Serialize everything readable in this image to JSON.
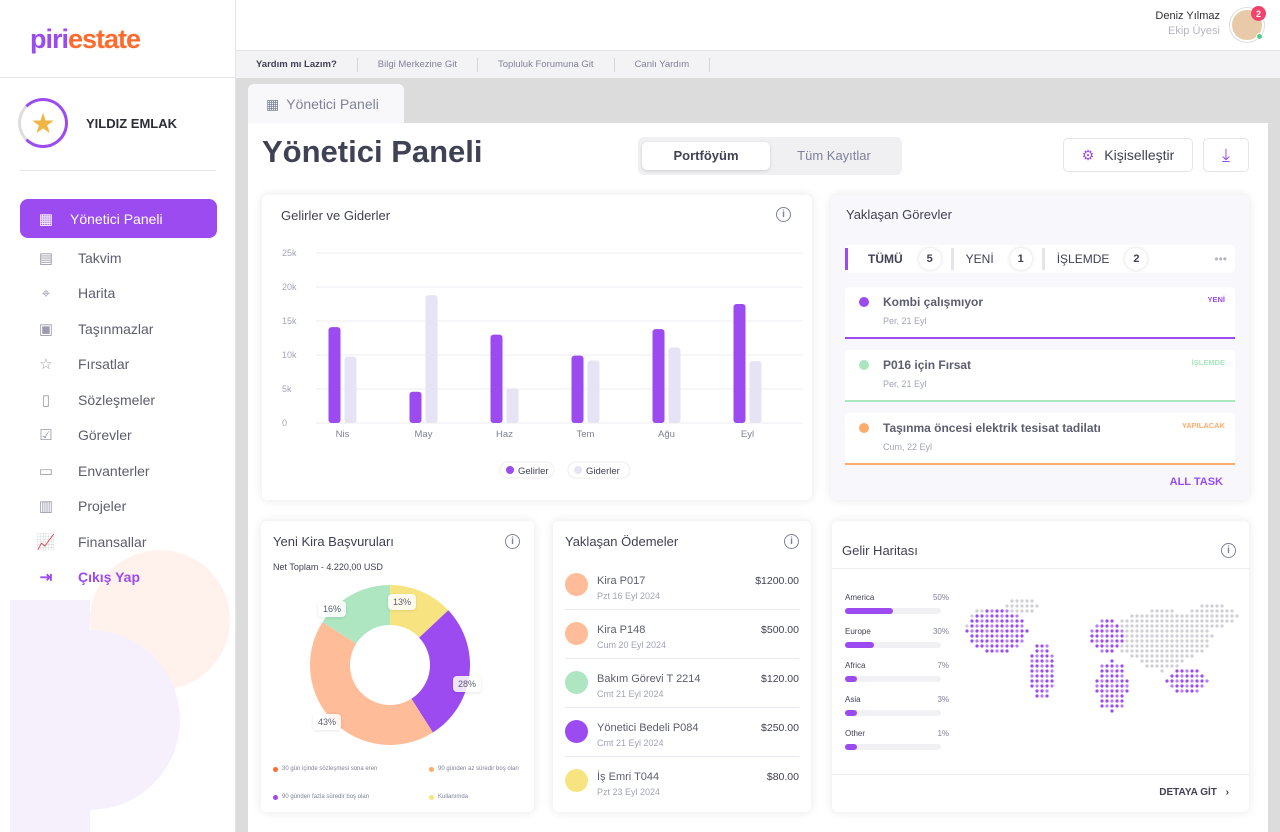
{
  "brand": {
    "logo_part1": "piri",
    "logo_part2": "estate"
  },
  "company": {
    "name": "YILDIZ EMLAK"
  },
  "sidebar": {
    "items": [
      {
        "label": "Yönetici Paneli",
        "icon": "grid-icon",
        "active": true
      },
      {
        "label": "Takvim",
        "icon": "calendar-icon"
      },
      {
        "label": "Harita",
        "icon": "map-icon"
      },
      {
        "label": "Taşınmazlar",
        "icon": "building-icon"
      },
      {
        "label": "Fırsatlar",
        "icon": "star-icon"
      },
      {
        "label": "Sözleşmeler",
        "icon": "contract-icon"
      },
      {
        "label": "Görevler",
        "icon": "clipboard-icon"
      },
      {
        "label": "Envanterler",
        "icon": "inventory-icon"
      },
      {
        "label": "Projeler",
        "icon": "monitor-icon"
      },
      {
        "label": "Finansallar",
        "icon": "chart-icon"
      },
      {
        "label": "Çıkış Yap",
        "icon": "logout-icon"
      }
    ]
  },
  "header": {
    "user_name": "Deniz Yılmaz",
    "user_role": "Ekip Üyesi",
    "notification_count": "2"
  },
  "helpbar": {
    "items": [
      "Yardım mı Lazım?",
      "Bilgi Merkezine Git",
      "Topluluk Forumuna Git",
      "Canlı Yardım"
    ]
  },
  "tab": {
    "label": "Yönetici Paneli"
  },
  "page": {
    "title": "Yönetici Paneli",
    "segments": [
      "Portföyüm",
      "Tüm Kayıtlar"
    ],
    "customize_label": "Kişiselleştir"
  },
  "income": {
    "title": "Gelirler ve Giderler"
  },
  "chart_data": {
    "type": "bar",
    "categories": [
      "Nis",
      "May",
      "Haz",
      "Tem",
      "Ağu",
      "Eyl"
    ],
    "series": [
      {
        "name": "Gelirler",
        "color": "#9b4bf0",
        "values": [
          14100,
          4600,
          13000,
          9900,
          13800,
          17500
        ]
      },
      {
        "name": "Giderler",
        "color": "#e6e3f5",
        "values": [
          9750,
          18800,
          5100,
          9200,
          11100,
          9100
        ]
      }
    ],
    "yticks": [
      "0",
      "5k",
      "10k",
      "15k",
      "20k",
      "25k"
    ],
    "ylim": [
      0,
      25000
    ],
    "grid": true,
    "legend": "bottom"
  },
  "tasks": {
    "title": "Yaklaşan Görevler",
    "filters": [
      {
        "label": "TÜMÜ",
        "count": "5"
      },
      {
        "label": "YENİ",
        "count": "1"
      },
      {
        "label": "İŞLEMDE",
        "count": "2"
      }
    ],
    "items": [
      {
        "title": "Kombi çalışmıyor",
        "date": "Per, 21 Eyl",
        "status": "YENİ",
        "color": "#9b4bf0"
      },
      {
        "title": "P016 için Fırsat",
        "date": "Per, 21 Eyl",
        "status": "İŞLEMDE",
        "color": "#a8e6bd"
      },
      {
        "title": "Taşınma öncesi elektrik tesisat tadilatı",
        "date": "Cum, 22 Eyl",
        "status": "YAPILACAK",
        "color": "#ffab6b"
      }
    ],
    "all_label": "ALL TASK"
  },
  "rentals": {
    "title": "Yeni Kira Başvuruları",
    "total": "Net Toplam - 4.220,00 USD",
    "slices": [
      {
        "label": "13%",
        "value": 13,
        "color": "#f7e481"
      },
      {
        "label": "28%",
        "value": 28,
        "color": "#9b4bf0"
      },
      {
        "label": "43%",
        "value": 43,
        "color": "#ffbc99"
      },
      {
        "label": "16%",
        "value": 16,
        "color": "#ade6c0"
      }
    ],
    "legend": [
      {
        "label": "30 gün içinde sözleşmesi sona eren",
        "color": "#ff6b2c"
      },
      {
        "label": "90 günden az süredir boş olan",
        "color": "#ffab6b"
      },
      {
        "label": "90 günden fazla süredir boş olan",
        "color": "#9b4bf0"
      },
      {
        "label": "Kullanımda",
        "color": "#f7e481"
      }
    ]
  },
  "payments": {
    "title": "Yaklaşan Ödemeler",
    "items": [
      {
        "title": "Kira P017",
        "date": "Pzt 16 Eyl 2024",
        "amount": "$1200.00",
        "color": "#ffbc99"
      },
      {
        "title": "Kira P148",
        "date": "Cum 20 Eyl 2024",
        "amount": "$500.00",
        "color": "#ffbc99"
      },
      {
        "title": "Bakım Görevi T 2214",
        "date": "Cmt 21 Eyl 2024",
        "amount": "$120.00",
        "color": "#ade6c0"
      },
      {
        "title": "Yönetici Bedeli P084",
        "date": "Cmt 21 Eyl 2024",
        "amount": "$250.00",
        "color": "#9b4bf0"
      },
      {
        "title": "İş Emri T044",
        "date": "Pzt 23 Eyl 2024",
        "amount": "$80.00",
        "color": "#f7e481"
      }
    ]
  },
  "revenue_map": {
    "title": "Gelir Haritası",
    "regions": [
      {
        "name": "America",
        "percent": "50%",
        "value": 50
      },
      {
        "name": "Europe",
        "percent": "30%",
        "value": 30
      },
      {
        "name": "Africa",
        "percent": "7%",
        "value": 7
      },
      {
        "name": "Asia",
        "percent": "3%",
        "value": 3
      },
      {
        "name": "Other",
        "percent": "1%",
        "value": 1
      }
    ],
    "detail_label": "DETAYA GİT"
  }
}
